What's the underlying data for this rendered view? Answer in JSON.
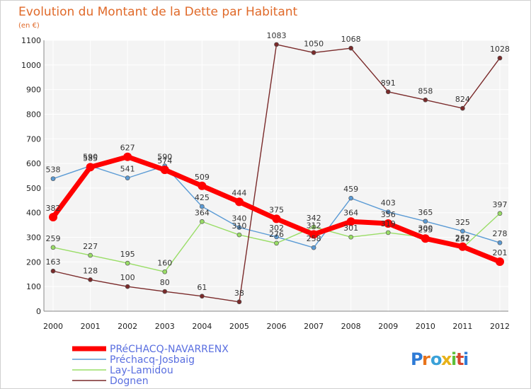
{
  "chart_data": {
    "type": "line",
    "title": "Evolution du Montant de la Dette par Habitant",
    "subtitle": "(en €)",
    "x": [
      "2000",
      "2001",
      "2002",
      "2003",
      "2004",
      "2005",
      "2006",
      "2007",
      "2008",
      "2009",
      "2010",
      "2011",
      "2012"
    ],
    "ylim": [
      0,
      1100
    ],
    "yticks": [
      0,
      100,
      200,
      300,
      400,
      500,
      600,
      700,
      800,
      900,
      1000,
      1100
    ],
    "grid": true,
    "legend_position": "bottom-left",
    "series": [
      {
        "name": "PRéCHACQ-NAVARRENX",
        "color": "#ff0000",
        "values": [
          382,
          585,
          627,
          574,
          509,
          444,
          375,
          312,
          364,
          356,
          295,
          262,
          201
        ]
      },
      {
        "name": "Préchacq-Josbaig",
        "color": "#5b9bd5",
        "values": [
          538,
          590,
          541,
          590,
          425,
          340,
          302,
          258,
          459,
          403,
          365,
          325,
          278
        ]
      },
      {
        "name": "Lay-Lamidou",
        "color": "#99dd66",
        "values": [
          259,
          227,
          195,
          160,
          364,
          310,
          276,
          342,
          301,
          319,
          300,
          257,
          397
        ]
      },
      {
        "name": "Dognen",
        "color": "#7a2a2a",
        "values": [
          163,
          128,
          100,
          80,
          61,
          38,
          1083,
          1050,
          1068,
          891,
          858,
          824,
          1028
        ]
      }
    ]
  },
  "brand": {
    "logo_text": "Proxiti"
  }
}
